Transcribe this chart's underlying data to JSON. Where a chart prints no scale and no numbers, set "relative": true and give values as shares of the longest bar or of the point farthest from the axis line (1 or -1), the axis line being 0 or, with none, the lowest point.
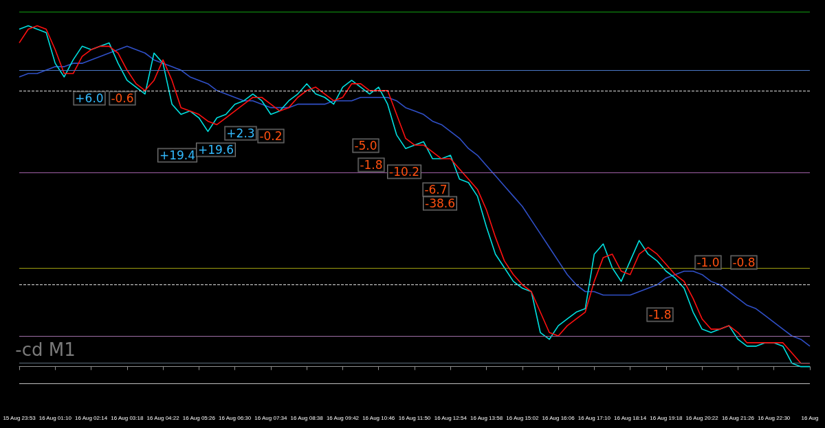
{
  "chart_data": {
    "type": "line",
    "relative": true,
    "grid": false,
    "legend": false,
    "categories": [
      "15 Aug 23:53",
      null,
      null,
      null,
      "16 Aug 01:10",
      null,
      null,
      null,
      "16 Aug 02:14",
      null,
      null,
      null,
      "16 Aug 03:18",
      null,
      null,
      null,
      "16 Aug 04:22",
      null,
      null,
      null,
      "16 Aug 05:26",
      null,
      null,
      null,
      "16 Aug 06:30",
      null,
      null,
      null,
      "16 Aug 07:34",
      null,
      null,
      null,
      "16 Aug 08:38",
      null,
      null,
      null,
      "16 Aug 09:42",
      null,
      null,
      null,
      "16 Aug 10:46",
      null,
      null,
      null,
      "16 Aug 11:50",
      null,
      null,
      null,
      "16 Aug 12:54",
      null,
      null,
      null,
      "16 Aug 13:58",
      null,
      null,
      null,
      "16 Aug 15:02",
      null,
      null,
      null,
      "16 Aug 16:06",
      null,
      null,
      null,
      "16 Aug 17:10",
      null,
      null,
      null,
      "16 Aug 18:14",
      null,
      null,
      null,
      "16 Aug 19:18",
      null,
      null,
      null,
      "16 Aug 20:22",
      null,
      null,
      null,
      "16 Aug 21:26",
      null,
      null,
      null,
      "16 Aug 22:30",
      null,
      null,
      null,
      "16 Aug"
    ],
    "series": [
      {
        "color": "#3050c8",
        "values": [
          0.85,
          0.86,
          0.86,
          0.87,
          0.88,
          0.88,
          0.89,
          0.89,
          0.9,
          0.91,
          0.92,
          0.93,
          0.94,
          0.93,
          0.92,
          0.9,
          0.89,
          0.88,
          0.87,
          0.85,
          0.84,
          0.83,
          0.81,
          0.8,
          0.79,
          0.78,
          0.78,
          0.77,
          0.76,
          0.76,
          0.76,
          0.77,
          0.77,
          0.77,
          0.77,
          0.78,
          0.78,
          0.78,
          0.79,
          0.79,
          0.79,
          0.79,
          0.78,
          0.76,
          0.75,
          0.74,
          0.72,
          0.71,
          0.69,
          0.67,
          0.64,
          0.62,
          0.59,
          0.56,
          0.53,
          0.5,
          0.47,
          0.43,
          0.39,
          0.35,
          0.31,
          0.27,
          0.24,
          0.22,
          0.22,
          0.21,
          0.21,
          0.21,
          0.21,
          0.22,
          0.23,
          0.24,
          0.26,
          0.27,
          0.28,
          0.28,
          0.27,
          0.25,
          0.24,
          0.22,
          0.2,
          0.18,
          0.17,
          0.15,
          0.13,
          0.11,
          0.09,
          0.08,
          0.06
        ]
      },
      {
        "color": "#00e0e0",
        "values": [
          0.99,
          1.0,
          0.99,
          0.98,
          0.89,
          0.85,
          0.9,
          0.94,
          0.93,
          0.94,
          0.95,
          0.89,
          0.84,
          0.82,
          0.8,
          0.92,
          0.89,
          0.77,
          0.74,
          0.75,
          0.73,
          0.69,
          0.73,
          0.74,
          0.77,
          0.78,
          0.8,
          0.78,
          0.74,
          0.75,
          0.78,
          0.8,
          0.83,
          0.8,
          0.79,
          0.77,
          0.82,
          0.84,
          0.82,
          0.8,
          0.82,
          0.77,
          0.68,
          0.64,
          0.65,
          0.66,
          0.61,
          0.61,
          0.62,
          0.55,
          0.54,
          0.5,
          0.41,
          0.33,
          0.29,
          0.25,
          0.23,
          0.22,
          0.1,
          0.08,
          0.12,
          0.14,
          0.16,
          0.17,
          0.33,
          0.36,
          0.29,
          0.25,
          0.31,
          0.37,
          0.33,
          0.31,
          0.28,
          0.26,
          0.23,
          0.16,
          0.11,
          0.1,
          0.11,
          0.12,
          0.08,
          0.06,
          0.06,
          0.07,
          0.07,
          0.06,
          0.01,
          0.0,
          0.0
        ]
      },
      {
        "color": "#ff1010",
        "values": [
          0.95,
          0.99,
          1.0,
          0.99,
          0.93,
          0.86,
          0.86,
          0.91,
          0.93,
          0.94,
          0.94,
          0.92,
          0.87,
          0.83,
          0.81,
          0.84,
          0.9,
          0.84,
          0.76,
          0.75,
          0.74,
          0.72,
          0.71,
          0.73,
          0.75,
          0.77,
          0.79,
          0.79,
          0.77,
          0.75,
          0.76,
          0.79,
          0.81,
          0.82,
          0.8,
          0.78,
          0.79,
          0.83,
          0.83,
          0.81,
          0.81,
          0.81,
          0.74,
          0.67,
          0.65,
          0.65,
          0.63,
          0.61,
          0.61,
          0.58,
          0.55,
          0.52,
          0.46,
          0.38,
          0.31,
          0.27,
          0.24,
          0.22,
          0.16,
          0.1,
          0.09,
          0.12,
          0.14,
          0.16,
          0.25,
          0.32,
          0.33,
          0.28,
          0.27,
          0.33,
          0.35,
          0.33,
          0.3,
          0.27,
          0.25,
          0.2,
          0.14,
          0.11,
          0.11,
          0.12,
          0.1,
          0.07,
          0.07,
          0.07,
          0.07,
          0.07,
          0.04,
          0.01,
          0.01
        ]
      }
    ],
    "ref_lines": [
      {
        "axis": "y",
        "value": 1.04,
        "color": "#10a010",
        "line_style": "solid"
      },
      {
        "axis": "y",
        "value": 0.87,
        "color": "#4a78c8",
        "line_style": "solid"
      },
      {
        "axis": "y",
        "value": 0.81,
        "color": "#e0e0e0",
        "line_style": "dashed"
      },
      {
        "axis": "y",
        "value": 0.57,
        "color": "#a060a8",
        "line_style": "solid"
      },
      {
        "axis": "y",
        "value": 0.29,
        "color": "#a0a010",
        "line_style": "solid"
      },
      {
        "axis": "y",
        "value": 0.24,
        "color": "#e0e0e0",
        "line_style": "dashed"
      },
      {
        "axis": "y",
        "value": 0.09,
        "color": "#a070a8",
        "line_style": "solid"
      },
      {
        "axis": "y",
        "value": 0.01,
        "color": "#607080",
        "line_style": "solid"
      },
      {
        "axis": "y",
        "value": -0.05,
        "color": "#c0c0c0",
        "line_style": "solid"
      }
    ],
    "annotations": [
      "+6.0",
      "-0.6",
      "+19.4",
      "+19.6",
      "+2.3",
      "-0.2",
      "-5.0",
      "-1.8",
      "-10.2",
      "-6.7",
      "-38.6",
      "-1.8",
      "-0.8",
      "-1.0",
      "-cd M1"
    ]
  }
}
